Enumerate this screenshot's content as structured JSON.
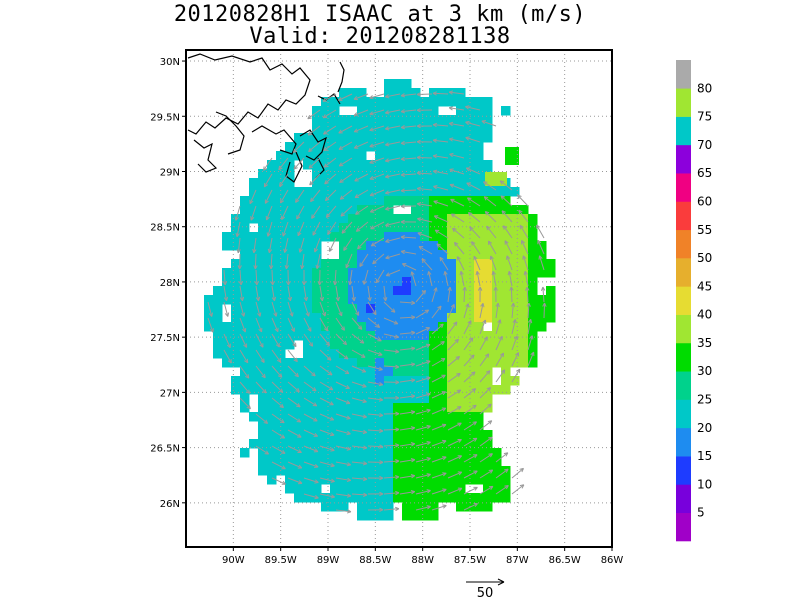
{
  "title_line1": "20120828H1 ISAAC at 3 km (m/s)",
  "title_line2": "Valid: 201208281138",
  "map": {
    "lon_range": [
      -90.5,
      -86.0
    ],
    "lat_range": [
      25.6,
      30.1
    ],
    "lon_ticks": [
      -90,
      -89.5,
      -89,
      -88.5,
      -88,
      -87.5,
      -87,
      -86.5,
      -86
    ],
    "lon_tick_labels": [
      "90W",
      "89.5W",
      "89W",
      "88.5W",
      "88W",
      "87.5W",
      "87W",
      "86.5W",
      "86W"
    ],
    "lat_ticks": [
      26,
      26.5,
      27,
      27.5,
      28,
      28.5,
      29,
      29.5,
      30
    ],
    "lat_tick_labels": [
      "26N",
      "26.5N",
      "27N",
      "27.5N",
      "28N",
      "28.5N",
      "29N",
      "29.5N",
      "30N"
    ],
    "grid": true,
    "storm_center": {
      "lon": -88.2,
      "lat": 27.95
    }
  },
  "colorbar": {
    "labels": [
      "5",
      "10",
      "15",
      "20",
      "25",
      "30",
      "35",
      "40",
      "45",
      "50",
      "55",
      "60",
      "65",
      "70",
      "75",
      "80"
    ],
    "colors": [
      "#a000c8",
      "#7800dc",
      "#1e3cff",
      "#1e8cf0",
      "#00c8c8",
      "#00d28c",
      "#00dc00",
      "#a0e632",
      "#e6dc32",
      "#e6af2d",
      "#f08228",
      "#fa3c3c",
      "#f00082",
      "#8c00dc",
      "#00c8c8",
      "#a0e632",
      "#aaaaaa"
    ]
  },
  "reference_vector": {
    "label": "50",
    "value": 50
  },
  "colors": {
    "vector": "#999999",
    "coast": "#000000",
    "grid": "#999999"
  }
}
